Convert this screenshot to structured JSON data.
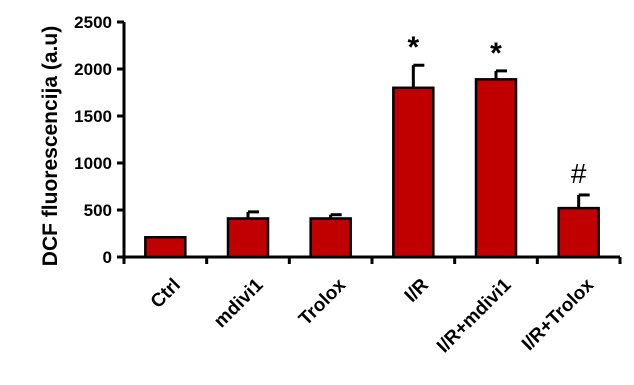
{
  "chart_data": {
    "type": "bar",
    "categories": [
      "Ctrl",
      "mdivi1",
      "Trolox",
      "I/R",
      "I/R+mdivi1",
      "I/R+Trolox"
    ],
    "values": [
      210,
      410,
      410,
      1800,
      1890,
      520
    ],
    "errors": [
      0,
      70,
      40,
      240,
      90,
      140
    ],
    "annotations": [
      "",
      "",
      "",
      "*",
      "*",
      "#"
    ],
    "ylabel": "DCF fluorescencija (a.u)",
    "ylim": [
      0,
      2500
    ],
    "yticks": [
      "0",
      "500",
      "1000",
      "1500",
      "2000",
      "2500"
    ],
    "ytick_values": [
      0,
      500,
      1000,
      1500,
      2000,
      2500
    ],
    "bar_color": "#c00000",
    "grid": false,
    "legend": "none"
  }
}
